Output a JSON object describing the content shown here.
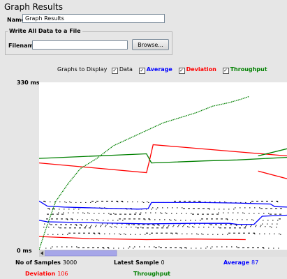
{
  "panel": {
    "title": "Graph Results"
  },
  "name_field": {
    "label": "Name:",
    "value": "Graph Results"
  },
  "file_group": {
    "title": "Write All Data to a File",
    "filename_label": "Filename",
    "filename_value": "",
    "browse_label": "Browse..."
  },
  "graphs_to_display": {
    "label": "Graphs to Display",
    "options": [
      {
        "label": "Data",
        "checked": true,
        "color": "#000000"
      },
      {
        "label": "Average",
        "checked": true,
        "color": "#0000ff"
      },
      {
        "label": "Deviation",
        "checked": true,
        "color": "#ff0000"
      },
      {
        "label": "Throughput",
        "checked": true,
        "color": "#008000"
      }
    ],
    "check_mark": "✓"
  },
  "chart_data": {
    "type": "line",
    "y_unit": "ms",
    "ylim": [
      0,
      330
    ],
    "y_tick_labels": [
      "330 ms",
      "0 ms"
    ],
    "grid": false,
    "x_range_samples": [
      0,
      3000
    ],
    "series": [
      {
        "name": "Average",
        "color": "#0000ff",
        "points": [
          [
            0,
            96
          ],
          [
            100,
            86
          ],
          [
            300,
            84
          ],
          [
            750,
            82
          ],
          [
            1200,
            80
          ],
          [
            1320,
            81
          ],
          [
            1360,
            93
          ],
          [
            2000,
            93
          ],
          [
            2400,
            92
          ],
          [
            2800,
            90
          ],
          [
            2850,
            85
          ],
          [
            3000,
            84
          ]
        ]
      },
      {
        "name": "Average",
        "color": "#0000ff",
        "points": [
          [
            0,
            58
          ],
          [
            100,
            55
          ],
          [
            700,
            53
          ],
          [
            1300,
            51
          ],
          [
            1850,
            52
          ],
          [
            2300,
            52
          ],
          [
            2400,
            50
          ],
          [
            2600,
            50
          ],
          [
            2700,
            66
          ],
          [
            3000,
            68
          ]
        ]
      },
      {
        "name": "Deviation",
        "color": "#ff0000",
        "points": [
          [
            0,
            171
          ],
          [
            1300,
            152
          ],
          [
            1330,
            172
          ],
          [
            1380,
            207
          ],
          [
            2400,
            193
          ],
          [
            3000,
            185
          ]
        ]
      },
      {
        "name": "Deviation",
        "color": "#ff0000",
        "points": [
          [
            2650,
            155
          ],
          [
            3000,
            140
          ]
        ]
      },
      {
        "name": "Deviation",
        "color": "#ff0000",
        "points": [
          [
            0,
            26
          ],
          [
            600,
            22
          ],
          [
            1300,
            20
          ],
          [
            1850,
            21
          ],
          [
            2500,
            20
          ]
        ]
      },
      {
        "name": "Throughput",
        "color": "#008000",
        "points": [
          [
            0,
            0
          ],
          [
            80,
            40
          ],
          [
            200,
            95
          ],
          [
            350,
            130
          ],
          [
            500,
            160
          ],
          [
            700,
            180
          ],
          [
            900,
            205
          ],
          [
            1100,
            220
          ],
          [
            1300,
            235
          ],
          [
            1500,
            250
          ],
          [
            1700,
            260
          ],
          [
            1900,
            270
          ],
          [
            2100,
            283
          ],
          [
            2300,
            290
          ],
          [
            2450,
            297
          ],
          [
            2540,
            302
          ]
        ]
      },
      {
        "name": "Throughput",
        "color": "#008000",
        "points": [
          [
            0,
            180
          ],
          [
            1300,
            189
          ],
          [
            1360,
            171
          ],
          [
            2000,
            175
          ],
          [
            2400,
            177
          ],
          [
            3000,
            182
          ]
        ]
      },
      {
        "name": "Throughput",
        "color": "#008000",
        "points": [
          [
            2650,
            185
          ],
          [
            3000,
            199
          ]
        ]
      }
    ],
    "data_bands_ms": [
      95,
      82,
      72,
      60,
      50,
      45,
      32,
      5
    ]
  },
  "footer": {
    "samples_label": "No of Samples",
    "samples_value": "3000",
    "latest_label": "Latest Sample",
    "latest_value": "0",
    "average_label": "Average",
    "average_value": "87",
    "deviation_label": "Deviation",
    "deviation_value": "106",
    "throughput_label": "Throughput",
    "throughput_value": ""
  },
  "colors": {
    "data": "#000000",
    "average": "#0000ff",
    "deviation": "#ff0000",
    "throughput": "#008000",
    "scroll_thumb": "#a6a6e8"
  }
}
